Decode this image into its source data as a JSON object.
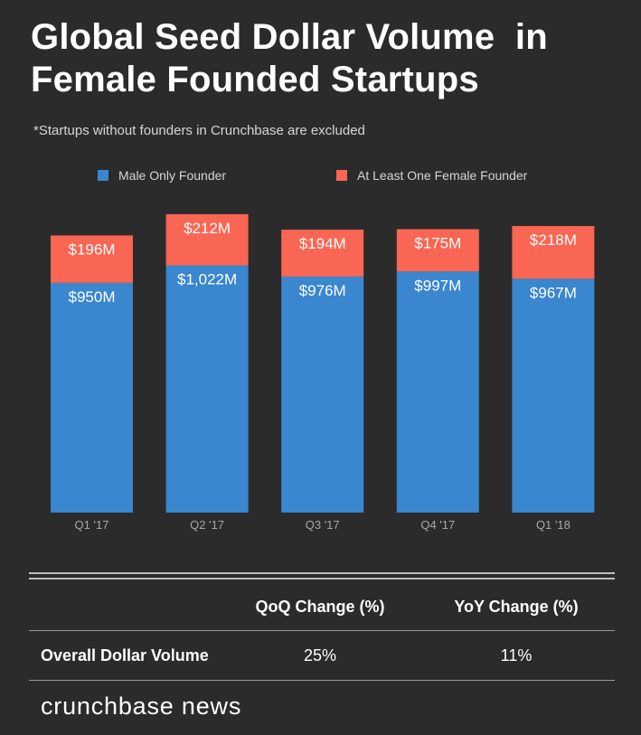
{
  "title_lines": [
    "Global Seed Dollar Volume  in",
    "Female Founded Startups"
  ],
  "note": "*Startups without founders in Crunchbase are excluded",
  "colors": {
    "male": "#3a86cf",
    "female": "#f96653",
    "background": "#2b2b2b",
    "tick": "#a8a8a8"
  },
  "chart_data": {
    "type": "bar",
    "stacked": true,
    "categories": [
      "Q1 '17",
      "Q2 '17",
      "Q3 '17",
      "Q4 '17",
      "Q1 '18"
    ],
    "series": [
      {
        "name": "Male Only Founder",
        "values": [
          950,
          1022,
          976,
          997,
          967
        ],
        "labels": [
          "$950M",
          "$1,022M",
          "$976M",
          "$997M",
          "$967M"
        ]
      },
      {
        "name": "At Least One Female Founder",
        "values": [
          196,
          212,
          194,
          175,
          218
        ],
        "labels": [
          "$196M",
          "$212M",
          "$194M",
          "$175M",
          "$218M"
        ]
      }
    ],
    "legend_position": "top",
    "grid": false
  },
  "table": {
    "columns": [
      "QoQ Change (%)",
      "YoY Change (%)"
    ],
    "rows": [
      {
        "label": "Overall Dollar Volume",
        "values": [
          "25%",
          "11%"
        ]
      }
    ]
  },
  "brand": "crunchbase news"
}
